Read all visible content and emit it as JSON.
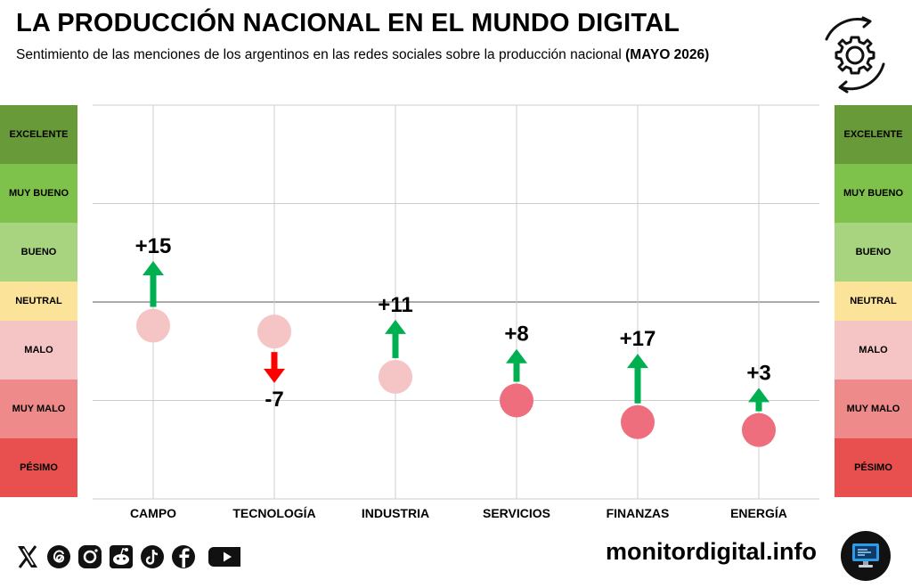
{
  "header": {
    "title": "LA PRODUCCIÓN NACIONAL EN EL MUNDO DIGITAL",
    "subtitle_text": "Sentimiento de las menciones de los argentinos en las redes sociales sobre la producción nacional",
    "subtitle_bold": "(MAYO 2026)",
    "icon": "gear-cycle-icon"
  },
  "scale": {
    "bands": [
      {
        "label": "EXCELENTE",
        "color": "#689a3a"
      },
      {
        "label": "MUY BUENO",
        "color": "#7fc24b"
      },
      {
        "label": "BUENO",
        "color": "#a8d37f"
      },
      {
        "label": "NEUTRAL",
        "color": "#fbe39a"
      },
      {
        "label": "MALO",
        "color": "#f5c4c4"
      },
      {
        "label": "MUY MALO",
        "color": "#ef8a8a"
      },
      {
        "label": "PÉSIMO",
        "color": "#e8504f"
      }
    ]
  },
  "chart_data": {
    "type": "scatter",
    "title": "LA PRODUCCIÓN NACIONAL EN EL MUNDO DIGITAL",
    "categories": [
      "CAMPO",
      "TECNOLOGÍA",
      "INDUSTRIA",
      "SERVICIOS",
      "FINANZAS",
      "ENERGÍA"
    ],
    "levels": [
      "EXCELENTE",
      "MUY BUENO",
      "BUENO",
      "NEUTRAL",
      "MALO",
      "MUY MALO",
      "PÉSIMO"
    ],
    "ylim": [
      -100,
      100
    ],
    "values": [
      -12,
      -15,
      -38,
      -50,
      -61,
      -65
    ],
    "changes": [
      15,
      -7,
      11,
      8,
      17,
      3
    ],
    "change_labels": [
      "+15",
      "-7",
      "+11",
      "+8",
      "+17",
      "+3"
    ],
    "point_colors": [
      "#f5c4c4",
      "#f5c4c4",
      "#f5c4c4",
      "#ef6e7d",
      "#ef6e7d",
      "#ef6e7d"
    ],
    "up_color": "#00b050",
    "down_color": "#ff0000",
    "grid": true
  },
  "footer": {
    "site": "monitordigital.info",
    "social_icons": [
      "x-icon",
      "threads-icon",
      "instagram-icon",
      "reddit-icon",
      "tiktok-icon",
      "facebook-icon",
      "youtube-icon"
    ]
  }
}
